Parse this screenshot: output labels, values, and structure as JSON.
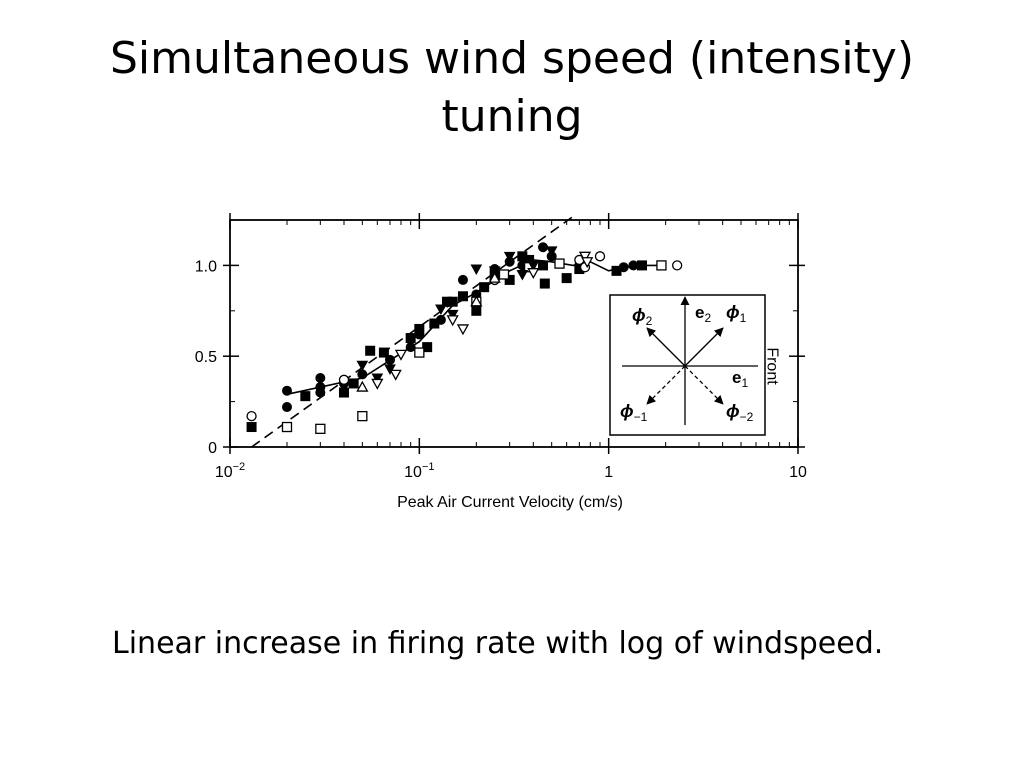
{
  "slide": {
    "title": "Simultaneous wind speed (intensity) tuning",
    "caption": "Linear increase in firing rate with log of windspeed."
  },
  "chart_data": {
    "type": "scatter",
    "title": "",
    "xlabel": "Peak Air Current Velocity (cm/s)",
    "ylabel": "",
    "xscale": "log",
    "xlim": [
      0.01,
      10
    ],
    "ylim": [
      0,
      1.25
    ],
    "x_ticks": [
      {
        "value": 0.01,
        "base": "10",
        "exp": "−2"
      },
      {
        "value": 0.1,
        "base": "10",
        "exp": "−1"
      },
      {
        "value": 1,
        "base": "1",
        "exp": ""
      },
      {
        "value": 10,
        "base": "10",
        "exp": ""
      }
    ],
    "y_ticks": [
      {
        "value": 0,
        "label": "0"
      },
      {
        "value": 0.5,
        "label": "0.5"
      },
      {
        "value": 1.0,
        "label": "1.0"
      }
    ],
    "grid": false,
    "series": [
      {
        "marker": "filled-circle",
        "points": [
          [
            0.02,
            0.31
          ],
          [
            0.02,
            0.22
          ],
          [
            0.03,
            0.38
          ],
          [
            0.03,
            0.3
          ],
          [
            0.03,
            0.33
          ],
          [
            0.04,
            0.35
          ],
          [
            0.05,
            0.4
          ],
          [
            0.07,
            0.48
          ],
          [
            0.09,
            0.55
          ],
          [
            0.1,
            0.62
          ],
          [
            0.13,
            0.7
          ],
          [
            0.17,
            0.92
          ],
          [
            0.2,
            0.84
          ],
          [
            0.25,
            0.98
          ],
          [
            0.3,
            1.02
          ],
          [
            0.35,
            1.0
          ],
          [
            0.45,
            1.1
          ],
          [
            0.5,
            1.05
          ],
          [
            0.7,
            1.0
          ],
          [
            1.2,
            0.99
          ],
          [
            1.35,
            1.0
          ]
        ]
      },
      {
        "marker": "filled-square",
        "points": [
          [
            0.013,
            0.11
          ],
          [
            0.025,
            0.28
          ],
          [
            0.04,
            0.3
          ],
          [
            0.045,
            0.35
          ],
          [
            0.055,
            0.53
          ],
          [
            0.065,
            0.52
          ],
          [
            0.09,
            0.6
          ],
          [
            0.1,
            0.65
          ],
          [
            0.11,
            0.55
          ],
          [
            0.12,
            0.68
          ],
          [
            0.14,
            0.8
          ],
          [
            0.15,
            0.8
          ],
          [
            0.17,
            0.83
          ],
          [
            0.2,
            0.75
          ],
          [
            0.22,
            0.88
          ],
          [
            0.25,
            0.95
          ],
          [
            0.3,
            0.92
          ],
          [
            0.35,
            1.05
          ],
          [
            0.38,
            1.03
          ],
          [
            0.45,
            1.0
          ],
          [
            0.46,
            0.9
          ],
          [
            0.55,
            1.01
          ],
          [
            0.6,
            0.93
          ],
          [
            0.7,
            0.98
          ],
          [
            1.1,
            0.97
          ],
          [
            1.5,
            1.0
          ]
        ]
      },
      {
        "marker": "open-circle",
        "points": [
          [
            0.013,
            0.17
          ],
          [
            0.04,
            0.37
          ],
          [
            0.25,
            0.92
          ],
          [
            0.7,
            1.03
          ],
          [
            0.75,
            0.99
          ],
          [
            0.9,
            1.05
          ],
          [
            2.3,
            1.0
          ]
        ]
      },
      {
        "marker": "open-square",
        "points": [
          [
            0.02,
            0.11
          ],
          [
            0.03,
            0.1
          ],
          [
            0.05,
            0.17
          ],
          [
            0.1,
            0.52
          ],
          [
            0.2,
            0.8
          ],
          [
            0.28,
            0.95
          ],
          [
            0.38,
            0.99
          ],
          [
            0.55,
            1.01
          ],
          [
            1.9,
            1.0
          ]
        ]
      },
      {
        "marker": "filled-triangle-down",
        "points": [
          [
            0.05,
            0.45
          ],
          [
            0.06,
            0.38
          ],
          [
            0.07,
            0.43
          ],
          [
            0.13,
            0.76
          ],
          [
            0.15,
            0.73
          ],
          [
            0.2,
            0.98
          ],
          [
            0.25,
            0.97
          ],
          [
            0.3,
            1.05
          ],
          [
            0.35,
            0.95
          ],
          [
            0.4,
            1.0
          ],
          [
            0.5,
            1.08
          ]
        ]
      },
      {
        "marker": "open-triangle-down",
        "points": [
          [
            0.06,
            0.35
          ],
          [
            0.075,
            0.4
          ],
          [
            0.08,
            0.51
          ],
          [
            0.15,
            0.7
          ],
          [
            0.17,
            0.65
          ],
          [
            0.4,
            0.96
          ],
          [
            0.75,
            1.05
          ],
          [
            0.77,
            1.02
          ]
        ]
      },
      {
        "marker": "open-triangle-up",
        "points": [
          [
            0.05,
            0.33
          ],
          [
            0.2,
            0.8
          ],
          [
            0.25,
            0.93
          ]
        ]
      }
    ],
    "fits": [
      {
        "style": "dashed",
        "points": [
          [
            0.013,
            0
          ],
          [
            0.65,
            1.27
          ]
        ]
      },
      {
        "style": "solid",
        "points": [
          [
            0.02,
            0.29
          ],
          [
            0.05,
            0.38
          ],
          [
            0.1,
            0.58
          ],
          [
            0.15,
            0.78
          ],
          [
            0.2,
            0.85
          ],
          [
            0.3,
            0.97
          ],
          [
            0.4,
            1.03
          ],
          [
            0.5,
            1.02
          ],
          [
            0.65,
            1.0
          ],
          [
            0.8,
            1.02
          ],
          [
            1.0,
            0.97
          ],
          [
            1.2,
            0.99
          ],
          [
            1.6,
            1.0
          ],
          [
            1.9,
            1.0
          ]
        ]
      }
    ],
    "inset": {
      "labels": {
        "phi2": {
          "base": "ϕ",
          "sub": "2"
        },
        "e2": {
          "base": "e",
          "sub": "2"
        },
        "phi1": {
          "base": "ϕ",
          "sub": "1"
        },
        "e1": {
          "base": "e",
          "sub": "1"
        },
        "phim1": {
          "base": "ϕ",
          "sub": "−1"
        },
        "phim2": {
          "base": "ϕ",
          "sub": "−2"
        }
      },
      "side_label": "Front"
    }
  }
}
